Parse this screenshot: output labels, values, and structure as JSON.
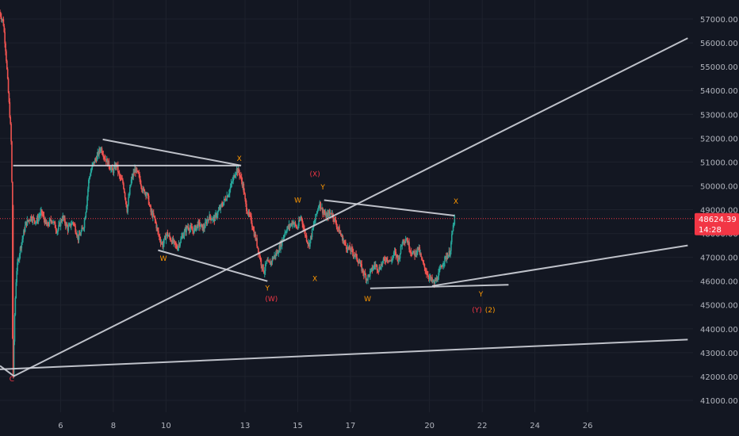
{
  "chart_data": {
    "type": "candlestick",
    "ylim": [
      40500,
      57800
    ],
    "xlim": [
      3.7,
      30.0
    ],
    "y_ticks": [
      41000,
      42000,
      43000,
      44000,
      45000,
      46000,
      47000,
      48000,
      49000,
      50000,
      51000,
      52000,
      53000,
      54000,
      55000,
      56000,
      57000
    ],
    "y_tick_labels": [
      "41000.00",
      "42000.00",
      "43000.00",
      "44000.00",
      "45000.00",
      "46000.00",
      "47000.00",
      "48000.00",
      "49000.00",
      "50000.00",
      "51000.00",
      "52000.00",
      "53000.00",
      "54000.00",
      "55000.00",
      "56000.00",
      "57000.00"
    ],
    "x_ticks": [
      6,
      8,
      10,
      13,
      15,
      17,
      20,
      22,
      24,
      26
    ],
    "x_tick_labels": [
      "6",
      "8",
      "10",
      "13",
      "15",
      "17",
      "20",
      "22",
      "24",
      "26"
    ],
    "last_price": 48624.39,
    "last_price_label": "48624.39",
    "countdown": "14:28",
    "colors": {
      "up": "#26a69a",
      "down": "#ef5350",
      "line": "#d1d4dc",
      "background": "#131722",
      "label_orange": "#ff9800",
      "label_red": "#f23645"
    },
    "price_path": [
      [
        3.7,
        57300
      ],
      [
        3.85,
        56900
      ],
      [
        3.95,
        55600
      ],
      [
        4.05,
        53800
      ],
      [
        4.12,
        52600
      ],
      [
        4.16,
        51600
      ],
      [
        4.19,
        49000
      ],
      [
        4.2,
        43800
      ],
      [
        4.23,
        42050
      ],
      [
        4.28,
        44500
      ],
      [
        4.35,
        46400
      ],
      [
        4.5,
        47400
      ],
      [
        4.7,
        48400
      ],
      [
        4.9,
        48700
      ],
      [
        5.1,
        48500
      ],
      [
        5.3,
        48900
      ],
      [
        5.5,
        48300
      ],
      [
        5.7,
        48600
      ],
      [
        5.9,
        48100
      ],
      [
        6.1,
        48700
      ],
      [
        6.3,
        48200
      ],
      [
        6.5,
        48500
      ],
      [
        6.7,
        47800
      ],
      [
        6.9,
        48300
      ],
      [
        7.0,
        49100
      ],
      [
        7.1,
        50300
      ],
      [
        7.25,
        50900
      ],
      [
        7.4,
        51200
      ],
      [
        7.55,
        51600
      ],
      [
        7.7,
        51200
      ],
      [
        7.85,
        50900
      ],
      [
        8.0,
        50600
      ],
      [
        8.15,
        50900
      ],
      [
        8.25,
        50400
      ],
      [
        8.4,
        50100
      ],
      [
        8.55,
        49000
      ],
      [
        8.7,
        50200
      ],
      [
        8.85,
        50700
      ],
      [
        9.0,
        50400
      ],
      [
        9.15,
        49800
      ],
      [
        9.3,
        49700
      ],
      [
        9.45,
        48900
      ],
      [
        9.6,
        48600
      ],
      [
        9.75,
        47900
      ],
      [
        9.9,
        47500
      ],
      [
        10.05,
        48000
      ],
      [
        10.25,
        47700
      ],
      [
        10.45,
        47400
      ],
      [
        10.65,
        47900
      ],
      [
        10.85,
        48300
      ],
      [
        11.05,
        48100
      ],
      [
        11.25,
        48400
      ],
      [
        11.45,
        48200
      ],
      [
        11.65,
        48700
      ],
      [
        11.85,
        48600
      ],
      [
        12.05,
        49000
      ],
      [
        12.25,
        49400
      ],
      [
        12.4,
        49700
      ],
      [
        12.55,
        50200
      ],
      [
        12.7,
        50700
      ],
      [
        12.82,
        50500
      ],
      [
        12.95,
        50000
      ],
      [
        13.05,
        49200
      ],
      [
        13.15,
        48800
      ],
      [
        13.25,
        48600
      ],
      [
        13.35,
        48100
      ],
      [
        13.45,
        47700
      ],
      [
        13.55,
        47200
      ],
      [
        13.65,
        46700
      ],
      [
        13.75,
        46400
      ],
      [
        13.85,
        46800
      ],
      [
        13.95,
        46700
      ],
      [
        14.1,
        47000
      ],
      [
        14.25,
        47200
      ],
      [
        14.4,
        47600
      ],
      [
        14.55,
        48100
      ],
      [
        14.7,
        48300
      ],
      [
        14.85,
        48500
      ],
      [
        15.0,
        48200
      ],
      [
        15.15,
        48700
      ],
      [
        15.3,
        48000
      ],
      [
        15.45,
        47500
      ],
      [
        15.6,
        48200
      ],
      [
        15.75,
        48900
      ],
      [
        15.85,
        49300
      ],
      [
        15.95,
        49000
      ],
      [
        16.1,
        48700
      ],
      [
        16.3,
        48900
      ],
      [
        16.45,
        48500
      ],
      [
        16.6,
        48100
      ],
      [
        16.75,
        47700
      ],
      [
        16.9,
        47400
      ],
      [
        17.05,
        47300
      ],
      [
        17.2,
        47100
      ],
      [
        17.35,
        46800
      ],
      [
        17.5,
        46400
      ],
      [
        17.65,
        46100
      ],
      [
        17.8,
        46400
      ],
      [
        17.95,
        46700
      ],
      [
        18.1,
        46500
      ],
      [
        18.25,
        46800
      ],
      [
        18.4,
        47000
      ],
      [
        18.55,
        46800
      ],
      [
        18.7,
        47200
      ],
      [
        18.85,
        46900
      ],
      [
        19.0,
        47700
      ],
      [
        19.15,
        47800
      ],
      [
        19.3,
        47300
      ],
      [
        19.45,
        47100
      ],
      [
        19.6,
        47400
      ],
      [
        19.75,
        46800
      ],
      [
        19.9,
        46400
      ],
      [
        20.05,
        46100
      ],
      [
        20.2,
        45900
      ],
      [
        20.35,
        46200
      ],
      [
        20.5,
        46700
      ],
      [
        20.65,
        47000
      ],
      [
        20.8,
        47200
      ],
      [
        20.9,
        48100
      ],
      [
        20.97,
        48620
      ]
    ],
    "trend_lines": [
      [
        [
          4.2,
          50850
        ],
        [
          12.8,
          50850
        ]
      ],
      [
        [
          4.2,
          42000
        ],
        [
          29.8,
          56200
        ]
      ],
      [
        [
          3.7,
          42300
        ],
        [
          29.8,
          43550
        ]
      ],
      [
        [
          7.6,
          51950
        ],
        [
          12.85,
          50850
        ]
      ],
      [
        [
          9.7,
          47300
        ],
        [
          13.85,
          46000
        ]
      ],
      [
        [
          16.0,
          49400
        ],
        [
          20.95,
          48750
        ]
      ],
      [
        [
          17.75,
          45700
        ],
        [
          23.0,
          45850
        ]
      ],
      [
        [
          3.7,
          42450
        ],
        [
          4.25,
          42000
        ]
      ],
      [
        [
          20.1,
          45800
        ],
        [
          29.8,
          47500
        ]
      ]
    ],
    "annotations": [
      {
        "text": "C",
        "x": 4.15,
        "y": 41800,
        "color": "red"
      },
      {
        "text": "W",
        "x": 9.9,
        "y": 46850,
        "color": "orange"
      },
      {
        "text": "X",
        "x": 12.78,
        "y": 51050,
        "color": "orange"
      },
      {
        "text": "Y",
        "x": 13.85,
        "y": 45600,
        "color": "orange"
      },
      {
        "text": "(W)",
        "x": 14.0,
        "y": 45150,
        "color": "red"
      },
      {
        "text": "W",
        "x": 15.0,
        "y": 49300,
        "color": "orange"
      },
      {
        "text": "(X)",
        "x": 15.65,
        "y": 50400,
        "color": "red"
      },
      {
        "text": "Y",
        "x": 15.95,
        "y": 49850,
        "color": "orange"
      },
      {
        "text": "X",
        "x": 15.65,
        "y": 46000,
        "color": "orange"
      },
      {
        "text": "W",
        "x": 17.65,
        "y": 45150,
        "color": "orange"
      },
      {
        "text": "X",
        "x": 21.0,
        "y": 49250,
        "color": "orange"
      },
      {
        "text": "Y",
        "x": 21.95,
        "y": 45350,
        "color": "orange"
      },
      {
        "text": "(Y)",
        "x": 21.8,
        "y": 44700,
        "color": "red"
      },
      {
        "text": "(2)",
        "x": 22.3,
        "y": 44700,
        "color": "orange"
      }
    ]
  }
}
